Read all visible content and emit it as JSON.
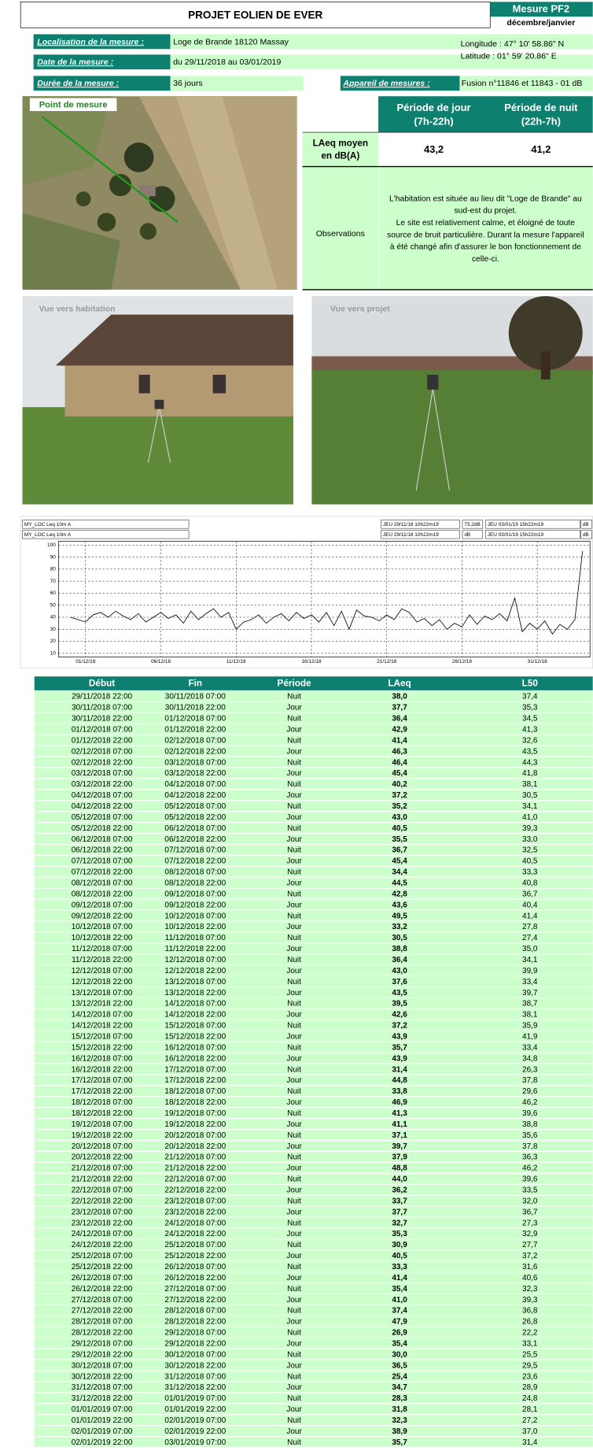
{
  "header": {
    "title": "PROJET EOLIEN DE EVER",
    "badge": "Mesure PF2",
    "period": "décembre/janvier"
  },
  "info": [
    {
      "label": "Localisation de la mesure :",
      "value": "Loge de Brande 18120 Massay"
    },
    {
      "label": "Date de la mesure :",
      "value": "du 29/11/2018 au 03/01/2019"
    },
    {
      "label": "Durée de la mesure :",
      "value": "36 jours"
    }
  ],
  "coords": [
    "Longitude : 47° 10' 58.86\" N",
    "Latitude : 01° 59' 20.86\" E"
  ],
  "device": {
    "label": "Appareil de mesures :",
    "value": "Fusion n°11846 et 11843 - 01 dB"
  },
  "aerial_label": "Point de mesure",
  "summary": {
    "columns": [
      [
        "Période de jour",
        "(7h-22h)"
      ],
      [
        "Période de nuit",
        "(22h-7h)"
      ]
    ],
    "row_label": [
      "LAeq moyen",
      "en dB(A)"
    ],
    "values": [
      "43,2",
      "41,2"
    ],
    "observations_label": "Observations",
    "observations": [
      "L'habitation est située au lieu dit \"Loge de Brande\" au",
      "sud-est du projet.",
      "Le site est relativement calme, et éloigné de toute",
      "source de bruit particulière. Durant la mesure l'appareil",
      "à été changé afin d'assurer le bon fonctionnement de",
      "celle-ci."
    ]
  },
  "photos": [
    "Vue vers habitation",
    "Vue vers projet"
  ],
  "chart_data": {
    "type": "line",
    "header_rows": [
      [
        "MY_LOC   Leq 10m  A",
        "JEU 29/11/18 10h22m19",
        "73,2dB",
        "JEU 03/01/19 15h22m19",
        "dB"
      ],
      [
        "MY_LOC   Leq 10m  A",
        "JEU 29/11/18 10h22m19",
        "dB",
        "JEU 03/01/19 15h22m19",
        "dB"
      ]
    ],
    "x": [
      1,
      1.5,
      2,
      2.5,
      3,
      3.5,
      4,
      4.5,
      5,
      5.5,
      6,
      6.5,
      7,
      7.5,
      8,
      8.5,
      9,
      9.5,
      10,
      10.5,
      11,
      11.5,
      12,
      12.5,
      13,
      13.5,
      14,
      14.5,
      15,
      15.5,
      16,
      16.5,
      17,
      17.5,
      18,
      18.5,
      19,
      19.5,
      20,
      20.5,
      21,
      21.5,
      22,
      22.5,
      23,
      23.5,
      24,
      24.5,
      25,
      25.5,
      26,
      26.5,
      27,
      27.5,
      28,
      28.5,
      29,
      29.5,
      30,
      30.5,
      31,
      31.5,
      32,
      32.5,
      33,
      33.5,
      34,
      34.5,
      35
    ],
    "series": [
      {
        "color": "#000000",
        "values": [
          40,
          38,
          36,
          42,
          44,
          40,
          45,
          41,
          38,
          43,
          36,
          40,
          44,
          39,
          42,
          35,
          45,
          38,
          43,
          47,
          40,
          44,
          30,
          36,
          38,
          42,
          35,
          40,
          43,
          37,
          44,
          39,
          42,
          36,
          44,
          33,
          45,
          30,
          46,
          41,
          40,
          37,
          42,
          38,
          47,
          44,
          36,
          39,
          33,
          38,
          30,
          35,
          32,
          42,
          34,
          41,
          38,
          43,
          37,
          56,
          28,
          35,
          30,
          37,
          26,
          34,
          30,
          38,
          95
        ]
      }
    ],
    "xlim": [
      0.2,
      35.5
    ],
    "xticks": [
      {
        "value": 2,
        "label": "01/12/18"
      },
      {
        "value": 7,
        "label": "06/12/18"
      },
      {
        "value": 12,
        "label": "11/12/18"
      },
      {
        "value": 17,
        "label": "16/12/18"
      },
      {
        "value": 22,
        "label": "21/12/18"
      },
      {
        "value": 27,
        "label": "26/12/18"
      },
      {
        "value": 32,
        "label": "31/12/18"
      }
    ],
    "ylim": [
      10,
      100
    ],
    "yticks": [
      10,
      20,
      30,
      40,
      50,
      60,
      70,
      80,
      90,
      100
    ],
    "grid": true
  },
  "table": {
    "columns": [
      "Début",
      "Fin",
      "Période",
      "LAeq",
      "L50"
    ],
    "rows": [
      [
        "29/11/2018 22:00",
        "30/11/2018 07:00",
        "Nuit",
        "38,0",
        "37,4"
      ],
      [
        "30/11/2018 07:00",
        "30/11/2018 22:00",
        "Jour",
        "37,7",
        "35,3"
      ],
      [
        "30/11/2018 22:00",
        "01/12/2018 07:00",
        "Nuit",
        "36,4",
        "34,5"
      ],
      [
        "01/12/2018 07:00",
        "01/12/2018 22:00",
        "Jour",
        "42,9",
        "41,3"
      ],
      [
        "01/12/2018 22:00",
        "02/12/2018 07:00",
        "Nuit",
        "41,4",
        "32,6"
      ],
      [
        "02/12/2018 07:00",
        "02/12/2018 22:00",
        "Jour",
        "46,3",
        "43,5"
      ],
      [
        "02/12/2018 22:00",
        "03/12/2018 07:00",
        "Nuit",
        "46,4",
        "44,3"
      ],
      [
        "03/12/2018 07:00",
        "03/12/2018 22:00",
        "Jour",
        "45,4",
        "41,8"
      ],
      [
        "03/12/2018 22:00",
        "04/12/2018 07:00",
        "Nuit",
        "40,2",
        "38,1"
      ],
      [
        "04/12/2018 07:00",
        "04/12/2018 22:00",
        "Jour",
        "37,2",
        "30,5"
      ],
      [
        "04/12/2018 22:00",
        "05/12/2018 07:00",
        "Nuit",
        "35,2",
        "34,1"
      ],
      [
        "05/12/2018 07:00",
        "05/12/2018 22:00",
        "Jour",
        "43,0",
        "41,0"
      ],
      [
        "05/12/2018 22:00",
        "06/12/2018 07:00",
        "Nuit",
        "40,5",
        "39,3"
      ],
      [
        "06/12/2018 07:00",
        "06/12/2018 22:00",
        "Jour",
        "35,5",
        "33,0"
      ],
      [
        "06/12/2018 22:00",
        "07/12/2018 07:00",
        "Nuit",
        "36,7",
        "32,5"
      ],
      [
        "07/12/2018 07:00",
        "07/12/2018 22:00",
        "Jour",
        "45,4",
        "40,5"
      ],
      [
        "07/12/2018 22:00",
        "08/12/2018 07:00",
        "Nuit",
        "34,4",
        "33,3"
      ],
      [
        "08/12/2018 07:00",
        "08/12/2018 22:00",
        "Jour",
        "44,5",
        "40,8"
      ],
      [
        "08/12/2018 22:00",
        "09/12/2018 07:00",
        "Nuit",
        "42,8",
        "36,7"
      ],
      [
        "09/12/2018 07:00",
        "09/12/2018 22:00",
        "Jour",
        "43,6",
        "40,4"
      ],
      [
        "09/12/2018 22:00",
        "10/12/2018 07:00",
        "Nuit",
        "49,5",
        "41,4"
      ],
      [
        "10/12/2018 07:00",
        "10/12/2018 22:00",
        "Jour",
        "33,2",
        "27,8"
      ],
      [
        "10/12/2018 22:00",
        "11/12/2018 07:00",
        "Nuit",
        "30,5",
        "27,4"
      ],
      [
        "11/12/2018 07:00",
        "11/12/2018 22:00",
        "Jour",
        "38,8",
        "35,0"
      ],
      [
        "11/12/2018 22:00",
        "12/12/2018 07:00",
        "Nuit",
        "36,4",
        "34,1"
      ],
      [
        "12/12/2018 07:00",
        "12/12/2018 22:00",
        "Jour",
        "43,0",
        "39,9"
      ],
      [
        "12/12/2018 22:00",
        "13/12/2018 07:00",
        "Nuit",
        "37,6",
        "33,4"
      ],
      [
        "13/12/2018 07:00",
        "13/12/2018 22:00",
        "Jour",
        "43,5",
        "39,7"
      ],
      [
        "13/12/2018 22:00",
        "14/12/2018 07:00",
        "Nuit",
        "39,5",
        "38,7"
      ],
      [
        "14/12/2018 07:00",
        "14/12/2018 22:00",
        "Jour",
        "42,6",
        "38,1"
      ],
      [
        "14/12/2018 22:00",
        "15/12/2018 07:00",
        "Nuit",
        "37,2",
        "35,9"
      ],
      [
        "15/12/2018 07:00",
        "15/12/2018 22:00",
        "Jour",
        "43,9",
        "41,9"
      ],
      [
        "15/12/2018 22:00",
        "16/12/2018 07:00",
        "Nuit",
        "35,7",
        "33,4"
      ],
      [
        "16/12/2018 07:00",
        "16/12/2018 22:00",
        "Jour",
        "43,9",
        "34,8"
      ],
      [
        "16/12/2018 22:00",
        "17/12/2018 07:00",
        "Nuit",
        "31,4",
        "26,3"
      ],
      [
        "17/12/2018 07:00",
        "17/12/2018 22:00",
        "Jour",
        "44,8",
        "37,8"
      ],
      [
        "17/12/2018 22:00",
        "18/12/2018 07:00",
        "Nuit",
        "33,8",
        "29,6"
      ],
      [
        "18/12/2018 07:00",
        "18/12/2018 22:00",
        "Jour",
        "46,9",
        "46,2"
      ],
      [
        "18/12/2018 22:00",
        "19/12/2018 07:00",
        "Nuit",
        "41,3",
        "39,6"
      ],
      [
        "19/12/2018 07:00",
        "19/12/2018 22:00",
        "Jour",
        "41,1",
        "38,8"
      ],
      [
        "19/12/2018 22:00",
        "20/12/2018 07:00",
        "Nuit",
        "37,1",
        "35,6"
      ],
      [
        "20/12/2018 07:00",
        "20/12/2018 22:00",
        "Jour",
        "39,7",
        "37,8"
      ],
      [
        "20/12/2018 22:00",
        "21/12/2018 07:00",
        "Nuit",
        "37,9",
        "36,3"
      ],
      [
        "21/12/2018 07:00",
        "21/12/2018 22:00",
        "Jour",
        "48,8",
        "46,2"
      ],
      [
        "21/12/2018 22:00",
        "22/12/2018 07:00",
        "Nuit",
        "44,0",
        "39,6"
      ],
      [
        "22/12/2018 07:00",
        "22/12/2018 22:00",
        "Jour",
        "36,2",
        "33,5"
      ],
      [
        "22/12/2018 22:00",
        "23/12/2018 07:00",
        "Nuit",
        "33,7",
        "32,0"
      ],
      [
        "23/12/2018 07:00",
        "23/12/2018 22:00",
        "Jour",
        "37,7",
        "36,7"
      ],
      [
        "23/12/2018 22:00",
        "24/12/2018 07:00",
        "Nuit",
        "32,7",
        "27,3"
      ],
      [
        "24/12/2018 07:00",
        "24/12/2018 22:00",
        "Jour",
        "35,3",
        "32,9"
      ],
      [
        "24/12/2018 22:00",
        "25/12/2018 07:00",
        "Nuit",
        "30,9",
        "27,7"
      ],
      [
        "25/12/2018 07:00",
        "25/12/2018 22:00",
        "Jour",
        "40,5",
        "37,2"
      ],
      [
        "25/12/2018 22:00",
        "26/12/2018 07:00",
        "Nuit",
        "33,3",
        "31,6"
      ],
      [
        "26/12/2018 07:00",
        "26/12/2018 22:00",
        "Jour",
        "41,4",
        "40,6"
      ],
      [
        "26/12/2018 22:00",
        "27/12/2018 07:00",
        "Nuit",
        "35,4",
        "32,3"
      ],
      [
        "27/12/2018 07:00",
        "27/12/2018 22:00",
        "Jour",
        "41,0",
        "39,3"
      ],
      [
        "27/12/2018 22:00",
        "28/12/2018 07:00",
        "Nuit",
        "37,4",
        "36,8"
      ],
      [
        "28/12/2018 07:00",
        "28/12/2018 22:00",
        "Jour",
        "47,9",
        "26,8"
      ],
      [
        "28/12/2018 22:00",
        "29/12/2018 07:00",
        "Nuit",
        "26,9",
        "22,2"
      ],
      [
        "29/12/2018 07:00",
        "29/12/2018 22:00",
        "Jour",
        "35,4",
        "33,1"
      ],
      [
        "29/12/2018 22:00",
        "30/12/2018 07:00",
        "Nuit",
        "30,0",
        "25,5"
      ],
      [
        "30/12/2018 07:00",
        "30/12/2018 22:00",
        "Jour",
        "36,5",
        "29,5"
      ],
      [
        "30/12/2018 22:00",
        "31/12/2018 07:00",
        "Nuit",
        "25,4",
        "23,6"
      ],
      [
        "31/12/2018 07:00",
        "31/12/2018 22:00",
        "Jour",
        "34,7",
        "28,9"
      ],
      [
        "31/12/2018 22:00",
        "01/01/2019 07:00",
        "Nuit",
        "28,3",
        "24,8"
      ],
      [
        "01/01/2019 07:00",
        "01/01/2019 22:00",
        "Jour",
        "31,8",
        "28,1"
      ],
      [
        "01/01/2019 22:00",
        "02/01/2019 07:00",
        "Nuit",
        "32,3",
        "27,2"
      ],
      [
        "02/01/2019 07:00",
        "02/01/2019 22:00",
        "Jour",
        "38,9",
        "37,0"
      ],
      [
        "02/01/2019 22:00",
        "03/01/2019 07:00",
        "Nuit",
        "35,7",
        "31,4"
      ]
    ]
  }
}
